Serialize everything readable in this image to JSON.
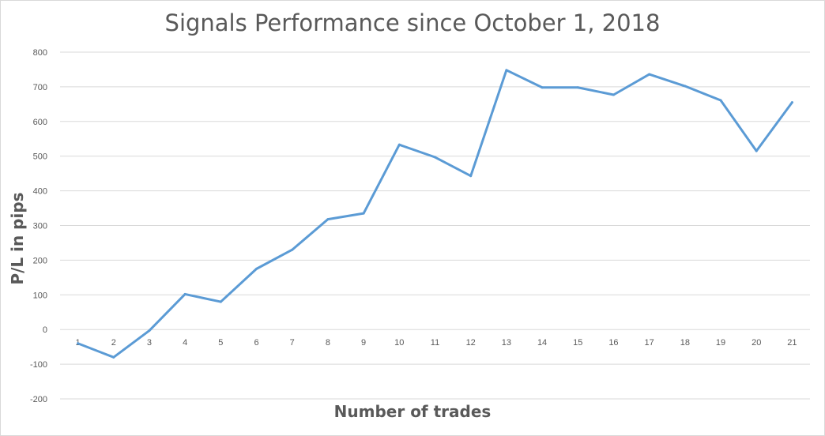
{
  "chart_data": {
    "type": "line",
    "title": "Signals Performance since October 1, 2018",
    "xlabel": "Number of trades",
    "ylabel": "P/L in pips",
    "ylim": [
      -200,
      800
    ],
    "y_ticks": [
      "800",
      "700",
      "600",
      "500",
      "400",
      "300",
      "200",
      "100",
      "0",
      "-100",
      "-200"
    ],
    "y_tick_values": [
      800,
      700,
      600,
      500,
      400,
      300,
      200,
      100,
      0,
      -100,
      -200
    ],
    "categories": [
      "1",
      "2",
      "3",
      "4",
      "5",
      "6",
      "7",
      "8",
      "9",
      "10",
      "11",
      "12",
      "13",
      "14",
      "15",
      "16",
      "17",
      "18",
      "19",
      "20",
      "21"
    ],
    "series": [
      {
        "values": [
          -40,
          -80,
          -3,
          102,
          80,
          175,
          230,
          318,
          335,
          533,
          497,
          443,
          748,
          698,
          698,
          677,
          736,
          702,
          661,
          515,
          655
        ]
      }
    ],
    "grid": true,
    "legend": "none",
    "colors": {
      "line": "#5b9bd5",
      "grid": "#d9d9d9",
      "text": "#595959"
    }
  }
}
